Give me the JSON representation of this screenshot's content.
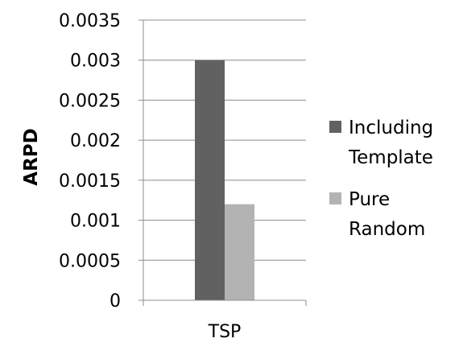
{
  "chart_data": {
    "type": "bar",
    "categories": [
      "TSP"
    ],
    "series": [
      {
        "name": "Including Template",
        "values": [
          0.003
        ],
        "color": "#616161"
      },
      {
        "name": "Pure Random",
        "values": [
          0.0012
        ],
        "color": "#b3b3b3"
      }
    ],
    "ylabel": "ARPD",
    "xlabel": "",
    "ylim": [
      0,
      0.0035
    ],
    "yticks": [
      "0",
      "0.0005",
      "0.001",
      "0.0015",
      "0.002",
      "0.0025",
      "0.003",
      "0.0035"
    ],
    "grid": true,
    "legend": {
      "placement": "right",
      "entries": [
        {
          "lines": [
            "Including",
            "Template"
          ]
        },
        {
          "lines": [
            "Pure",
            "Random"
          ]
        }
      ]
    }
  }
}
